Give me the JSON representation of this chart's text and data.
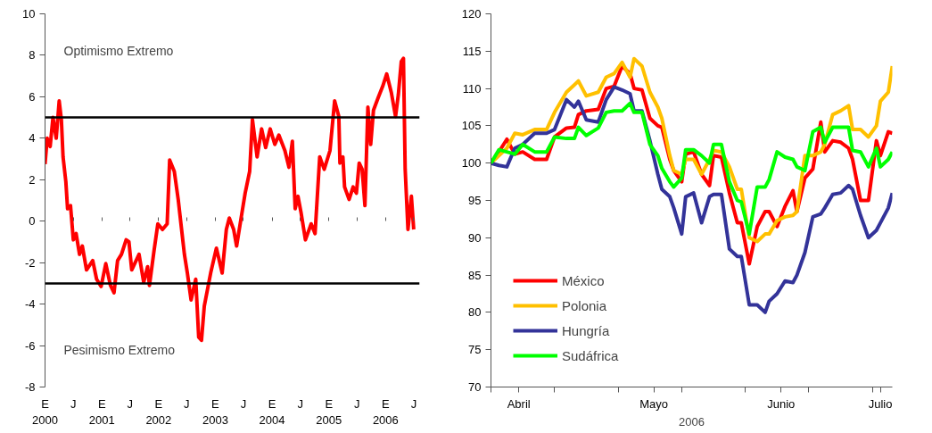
{
  "chart_data": [
    {
      "type": "line",
      "x": [
        "2000-01-01",
        "2000-01-15",
        "2000-02-03",
        "2000-02-21",
        "2000-03-13",
        "2000-04-01",
        "2000-04-15",
        "2000-04-26",
        "2000-05-14",
        "2000-05-25",
        "2000-06-13",
        "2000-07-01",
        "2000-07-19",
        "2000-08-10",
        "2000-08-28",
        "2000-09-24",
        "2000-11-03",
        "2000-11-28",
        "2000-12-27",
        "2001-01-26",
        "2001-02-25",
        "2001-03-20",
        "2001-04-12",
        "2001-05-07",
        "2001-06-06",
        "2001-06-24",
        "2001-07-12",
        "2001-08-28",
        "2001-09-27",
        "2001-10-22",
        "2001-11-03",
        "2001-12-02",
        "2001-12-27",
        "2002-01-26",
        "2002-02-25",
        "2002-03-13",
        "2002-04-12",
        "2002-05-07",
        "2002-06-16",
        "2002-07-05",
        "2002-07-29",
        "2002-08-28",
        "2002-09-16",
        "2002-10-04",
        "2002-10-22",
        "2002-12-02",
        "2003-01-08",
        "2003-02-14",
        "2003-03-13",
        "2003-04-01",
        "2003-04-29",
        "2003-05-18",
        "2003-06-16",
        "2003-07-12",
        "2003-08-10",
        "2003-08-28",
        "2003-09-27",
        "2003-10-26",
        "2003-11-21",
        "2003-12-20",
        "2004-01-19",
        "2004-02-14",
        "2004-03-24",
        "2004-04-19",
        "2004-05-11",
        "2004-05-29",
        "2004-06-16",
        "2004-07-05",
        "2004-08-03",
        "2004-09-09",
        "2004-10-04",
        "2004-11-03",
        "2004-12-02",
        "2005-01-08",
        "2005-02-07",
        "2005-03-06",
        "2005-03-13",
        "2005-04-01",
        "2005-04-12",
        "2005-05-11",
        "2005-06-06",
        "2005-06-27",
        "2005-07-15",
        "2005-08-03",
        "2005-08-21",
        "2005-09-09",
        "2005-09-27",
        "2005-10-15",
        "2005-11-14",
        "2005-12-13",
        "2006-01-08",
        "2006-02-07",
        "2006-03-06",
        "2006-03-24",
        "2006-04-12",
        "2006-04-26",
        "2006-05-07",
        "2006-05-25",
        "2006-06-16",
        "2006-07-01"
      ],
      "series": [
        {
          "color": "#ff0000",
          "values": [
            2.75,
            4.0,
            3.6,
            5.0,
            4.0,
            5.8,
            4.9,
            3.1,
            1.9,
            0.6,
            0.75,
            -0.9,
            -0.6,
            -1.6,
            -1.2,
            -2.35,
            -1.9,
            -2.8,
            -3.15,
            -2.05,
            -3.1,
            -3.45,
            -1.9,
            -1.6,
            -0.9,
            -1.0,
            -2.35,
            -1.6,
            -2.95,
            -2.2,
            -3.1,
            -1.45,
            -0.13,
            -0.4,
            -0.13,
            2.95,
            2.4,
            1.05,
            -1.6,
            -2.5,
            -3.8,
            -2.8,
            -5.6,
            -5.75,
            -4.1,
            -2.5,
            -1.3,
            -2.5,
            -0.4,
            0.15,
            -0.4,
            -1.2,
            0.15,
            1.35,
            2.4,
            4.9,
            3.1,
            4.45,
            3.55,
            4.45,
            3.7,
            4.15,
            3.4,
            2.6,
            3.85,
            0.6,
            1.2,
            0.45,
            -0.9,
            -0.13,
            -0.6,
            3.1,
            2.5,
            3.4,
            5.8,
            5.05,
            2.8,
            3.1,
            1.65,
            1.05,
            1.65,
            1.35,
            2.8,
            2.5,
            0.75,
            5.5,
            3.7,
            5.35,
            5.95,
            6.5,
            7.1,
            6.2,
            5.05,
            6.1,
            7.7,
            7.85,
            2.5,
            -0.4,
            1.2,
            -0.4
          ]
        }
      ],
      "xlim": [
        "2000-01-01",
        "2006-08-08"
      ],
      "xticks": [
        {
          "value": "2000-01-01",
          "label": "E\n2000"
        },
        {
          "value": "2000-07-01",
          "label": "J"
        },
        {
          "value": "2001-01-01",
          "label": "E\n2001"
        },
        {
          "value": "2001-07-01",
          "label": "J"
        },
        {
          "value": "2002-01-01",
          "label": "E\n2002"
        },
        {
          "value": "2002-07-01",
          "label": "J"
        },
        {
          "value": "2003-01-01",
          "label": "E\n2003"
        },
        {
          "value": "2003-07-01",
          "label": "J"
        },
        {
          "value": "2004-01-01",
          "label": "E\n2004"
        },
        {
          "value": "2004-07-01",
          "label": "J"
        },
        {
          "value": "2005-01-01",
          "label": "E\n2005"
        },
        {
          "value": "2005-07-01",
          "label": "J"
        },
        {
          "value": "2006-01-01",
          "label": "E\n2006"
        },
        {
          "value": "2006-07-01",
          "label": "J"
        }
      ],
      "ylim": [
        -8,
        10
      ],
      "yticks": [
        -8,
        -6,
        -4,
        -2,
        0,
        2,
        4,
        6,
        8,
        10
      ],
      "ref_lines": [
        {
          "axis": "y",
          "value": 5,
          "color": "#000000"
        },
        {
          "axis": "y",
          "value": -3,
          "color": "#000000"
        }
      ],
      "annotations": [
        "Optimismo Extremo",
        "Pesimismo Extremo"
      ],
      "grid": false,
      "legend": false
    },
    {
      "type": "line",
      "xlabel": "2006",
      "x": [
        "2006-03-31",
        "2006-04-02",
        "2006-04-04",
        "2006-04-06",
        "2006-04-08",
        "2006-04-11",
        "2006-04-14",
        "2006-04-16",
        "2006-04-19",
        "2006-04-21",
        "2006-04-22",
        "2006-04-24",
        "2006-04-27",
        "2006-04-29",
        "2006-05-01",
        "2006-05-03",
        "2006-05-05",
        "2006-05-06",
        "2006-05-08",
        "2006-05-10",
        "2006-05-12",
        "2006-05-13",
        "2006-05-15",
        "2006-05-16",
        "2006-05-18",
        "2006-05-19",
        "2006-05-21",
        "2006-05-23",
        "2006-05-25",
        "2006-05-26",
        "2006-05-28",
        "2006-05-30",
        "2006-06-01",
        "2006-06-02",
        "2006-06-04",
        "2006-06-06",
        "2006-06-08",
        "2006-06-09",
        "2006-06-11",
        "2006-06-13",
        "2006-06-15",
        "2006-06-16",
        "2006-06-18",
        "2006-06-20",
        "2006-06-22",
        "2006-06-23",
        "2006-06-25",
        "2006-06-27",
        "2006-06-29",
        "2006-06-30",
        "2006-07-02",
        "2006-07-04",
        "2006-07-06",
        "2006-07-07",
        "2006-07-09",
        "2006-07-10"
      ],
      "series": [
        {
          "name": "México",
          "color": "#ff0000",
          "values": [
            100,
            101.5,
            103.2,
            101.2,
            101.5,
            100.5,
            100.5,
            103.5,
            104.7,
            104.8,
            106.5,
            107,
            107.2,
            110,
            110.3,
            113,
            112,
            110,
            109.8,
            106,
            105,
            104.8,
            100.5,
            99,
            97.5,
            101.2,
            101.5,
            98.5,
            97,
            101,
            100.8,
            96,
            92,
            92,
            86.5,
            91.5,
            93.5,
            93.5,
            91.5,
            94.2,
            96.3,
            93.5,
            98,
            99.2,
            105.5,
            101.5,
            103,
            102.8,
            102,
            100.5,
            95,
            95,
            103,
            101,
            104.2,
            104
          ]
        },
        {
          "name": "Polonia",
          "color": "#ffc000",
          "values": [
            100,
            101,
            102,
            104,
            103.8,
            104.5,
            104.5,
            106.8,
            109.5,
            110.5,
            111,
            109,
            109.5,
            111.5,
            112,
            113.5,
            111.5,
            114,
            113,
            109.5,
            107.5,
            106,
            101,
            99,
            98.5,
            100.5,
            100.5,
            98.5,
            100.5,
            101.7,
            101.5,
            99.5,
            96.5,
            96.5,
            90,
            89.5,
            90.5,
            90.5,
            92.3,
            92.8,
            93,
            93.5,
            101,
            101,
            101.5,
            102.5,
            106.5,
            107,
            107.7,
            104.5,
            104.5,
            103.5,
            105,
            108.3,
            109.5,
            113
          ]
        },
        {
          "name": "Hungría",
          "color": "#333399",
          "values": [
            100,
            99.7,
            99.5,
            102,
            102.5,
            104,
            104,
            104.5,
            108.5,
            107.5,
            108.3,
            105.8,
            105.5,
            108.5,
            110.2,
            109.8,
            109.3,
            107,
            107,
            103,
            98.5,
            96.5,
            95.5,
            94,
            90.5,
            95.5,
            96,
            92,
            95.5,
            95.8,
            95.8,
            88.5,
            87.5,
            87.5,
            81,
            81,
            80,
            81.5,
            82.5,
            84.2,
            84,
            85,
            88,
            92.8,
            93.2,
            94,
            95.8,
            96,
            97,
            96.5,
            93,
            90,
            91,
            92,
            94,
            96
          ]
        },
        {
          "name": "Sudáfrica",
          "color": "#00ff00",
          "values": [
            100,
            101.8,
            101.5,
            101.2,
            102.5,
            101.5,
            101.5,
            103.5,
            103.3,
            103.3,
            104.8,
            103.7,
            104.7,
            106.8,
            107,
            107,
            108,
            106.8,
            106.8,
            102.5,
            101,
            99.3,
            97.5,
            96.8,
            98,
            101.8,
            101.8,
            101,
            100,
            102.5,
            102.5,
            97.5,
            95,
            94.8,
            90.5,
            96.8,
            96.8,
            97.8,
            101.5,
            100.8,
            100.5,
            99.5,
            99,
            104.2,
            104.8,
            102.8,
            104.8,
            104.8,
            104.8,
            101.7,
            101.5,
            99.5,
            102,
            99.5,
            100.5,
            101.5
          ]
        }
      ],
      "xlim": [
        "2006-03-31",
        "2006-07-10"
      ],
      "xticks": [
        {
          "value": "2006-03-31",
          "label": null
        },
        {
          "value": "2006-04-07",
          "label": "Abril"
        },
        {
          "value": "2006-04-16",
          "label": null
        },
        {
          "value": "2006-05-02",
          "label": null
        },
        {
          "value": "2006-05-11",
          "label": "Mayo"
        },
        {
          "value": "2006-05-18",
          "label": null
        },
        {
          "value": "2006-06-03",
          "label": null
        },
        {
          "value": "2006-06-12",
          "label": "Junio"
        },
        {
          "value": "2006-06-19",
          "label": null
        },
        {
          "value": "2006-07-05",
          "label": null
        },
        {
          "value": "2006-07-07",
          "label": "Julio"
        }
      ],
      "ylim": [
        70,
        120
      ],
      "yticks": [
        70,
        75,
        80,
        85,
        90,
        95,
        100,
        105,
        110,
        115,
        120
      ],
      "grid": false,
      "legend": "bottom left"
    }
  ]
}
